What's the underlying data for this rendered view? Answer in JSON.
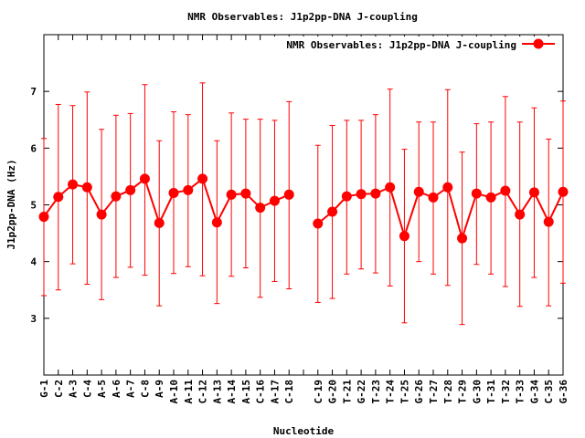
{
  "chart_data": {
    "type": "line",
    "title": "NMR Observables: J1p2pp-DNA J-coupling",
    "xlabel": "Nucleotide",
    "ylabel": "J1p2pp-DNA (Hz)",
    "ylim": [
      2,
      8
    ],
    "yticks": [
      3,
      4,
      5,
      6,
      7
    ],
    "grid": false,
    "legend_position": "top-right",
    "series_color": "#ff0000",
    "series": [
      {
        "name": "NMR Observables: J1p2pp-DNA J-coupling",
        "points": [
          {
            "x": "G-1",
            "y": 4.79,
            "err_low": 3.4,
            "err_high": 6.17
          },
          {
            "x": "C-2",
            "y": 5.14,
            "err_low": 3.5,
            "err_high": 6.77
          },
          {
            "x": "A-3",
            "y": 5.36,
            "err_low": 3.96,
            "err_high": 6.75
          },
          {
            "x": "C-4",
            "y": 5.31,
            "err_low": 3.6,
            "err_high": 6.99
          },
          {
            "x": "A-5",
            "y": 4.83,
            "err_low": 3.33,
            "err_high": 6.33
          },
          {
            "x": "A-6",
            "y": 5.15,
            "err_low": 3.72,
            "err_high": 6.58
          },
          {
            "x": "A-7",
            "y": 5.26,
            "err_low": 3.9,
            "err_high": 6.61
          },
          {
            "x": "C-8",
            "y": 5.46,
            "err_low": 3.76,
            "err_high": 7.12
          },
          {
            "x": "A-9",
            "y": 4.68,
            "err_low": 3.22,
            "err_high": 6.13
          },
          {
            "x": "A-10",
            "y": 5.21,
            "err_low": 3.79,
            "err_high": 6.64
          },
          {
            "x": "A-11",
            "y": 5.26,
            "err_low": 3.91,
            "err_high": 6.59
          },
          {
            "x": "C-12",
            "y": 5.46,
            "err_low": 3.75,
            "err_high": 7.15
          },
          {
            "x": "A-13",
            "y": 4.69,
            "err_low": 3.26,
            "err_high": 6.13
          },
          {
            "x": "A-14",
            "y": 5.18,
            "err_low": 3.74,
            "err_high": 6.62
          },
          {
            "x": "A-15",
            "y": 5.2,
            "err_low": 3.89,
            "err_high": 6.51
          },
          {
            "x": "C-16",
            "y": 4.95,
            "err_low": 3.37,
            "err_high": 6.51
          },
          {
            "x": "A-17",
            "y": 5.07,
            "err_low": 3.65,
            "err_high": 6.49
          },
          {
            "x": "C-18",
            "y": 5.18,
            "err_low": 3.52,
            "err_high": 6.82
          },
          {
            "x": "",
            "y": null,
            "err_low": null,
            "err_high": null
          },
          {
            "x": "C-19",
            "y": 4.67,
            "err_low": 3.28,
            "err_high": 6.05
          },
          {
            "x": "G-20",
            "y": 4.88,
            "err_low": 3.35,
            "err_high": 6.4
          },
          {
            "x": "T-21",
            "y": 5.15,
            "err_low": 3.78,
            "err_high": 6.49
          },
          {
            "x": "G-22",
            "y": 5.19,
            "err_low": 3.87,
            "err_high": 6.49
          },
          {
            "x": "T-23",
            "y": 5.2,
            "err_low": 3.8,
            "err_high": 6.59
          },
          {
            "x": "T-24",
            "y": 5.31,
            "err_low": 3.57,
            "err_high": 7.04
          },
          {
            "x": "T-25",
            "y": 4.45,
            "err_low": 2.92,
            "err_high": 5.98
          },
          {
            "x": "G-26",
            "y": 5.23,
            "err_low": 4.0,
            "err_high": 6.46
          },
          {
            "x": "T-27",
            "y": 5.13,
            "err_low": 3.78,
            "err_high": 6.46
          },
          {
            "x": "T-28",
            "y": 5.31,
            "err_low": 3.58,
            "err_high": 7.03
          },
          {
            "x": "T-29",
            "y": 4.41,
            "err_low": 2.89,
            "err_high": 5.93
          },
          {
            "x": "G-30",
            "y": 5.2,
            "err_low": 3.95,
            "err_high": 6.43
          },
          {
            "x": "T-31",
            "y": 5.13,
            "err_low": 3.78,
            "err_high": 6.46
          },
          {
            "x": "T-32",
            "y": 5.25,
            "err_low": 3.56,
            "err_high": 6.91
          },
          {
            "x": "T-33",
            "y": 4.83,
            "err_low": 3.21,
            "err_high": 6.46
          },
          {
            "x": "G-34",
            "y": 5.22,
            "err_low": 3.72,
            "err_high": 6.71
          },
          {
            "x": "C-35",
            "y": 4.7,
            "err_low": 3.22,
            "err_high": 6.16
          },
          {
            "x": "G-36",
            "y": 5.23,
            "err_low": 3.62,
            "err_high": 6.83
          }
        ]
      }
    ]
  }
}
